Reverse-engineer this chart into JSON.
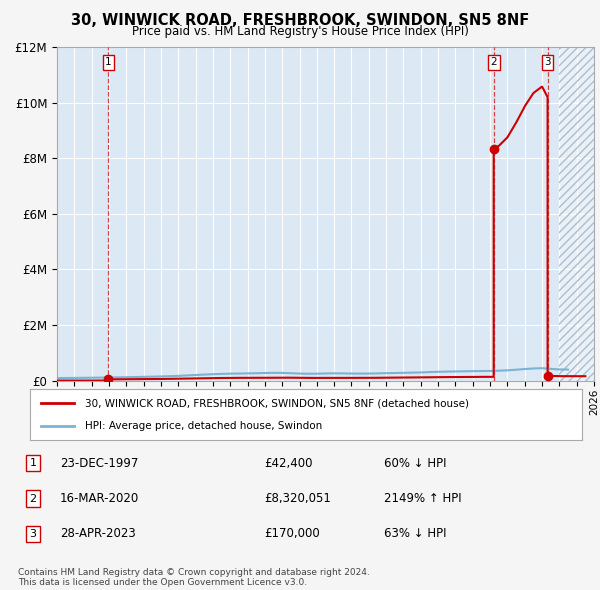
{
  "title": "30, WINWICK ROAD, FRESHBROOK, SWINDON, SN5 8NF",
  "subtitle": "Price paid vs. HM Land Registry's House Price Index (HPI)",
  "fig_bg_color": "#f5f5f5",
  "plot_bg_color": "#dce9f5",
  "hatch_color": "#b0bccb",
  "grid_color": "#ffffff",
  "ylim": [
    0,
    12000000
  ],
  "yticks": [
    0,
    2000000,
    4000000,
    6000000,
    8000000,
    10000000,
    12000000
  ],
  "ytick_labels": [
    "£0",
    "£2M",
    "£4M",
    "£6M",
    "£8M",
    "£10M",
    "£12M"
  ],
  "xmin": 1995,
  "xmax": 2026,
  "hpi_color": "#7ab3d4",
  "price_color": "#cc0000",
  "transactions": [
    {
      "num": 1,
      "date": "23-DEC-1997",
      "year": 1997.97,
      "price": 42400,
      "label": "23-DEC-1997",
      "price_str": "£42,400",
      "pct": "60% ↓ HPI"
    },
    {
      "num": 2,
      "date": "16-MAR-2020",
      "year": 2020.21,
      "price": 8320051,
      "label": "16-MAR-2020",
      "price_str": "£8,320,051",
      "pct": "2149% ↑ HPI"
    },
    {
      "num": 3,
      "date": "28-APR-2023",
      "year": 2023.32,
      "price": 170000,
      "label": "28-APR-2023",
      "price_str": "£170,000",
      "pct": "63% ↓ HPI"
    }
  ],
  "legend_property_label": "30, WINWICK ROAD, FRESHBROOK, SWINDON, SN5 8NF (detached house)",
  "legend_hpi_label": "HPI: Average price, detached house, Swindon",
  "footnote": "Contains HM Land Registry data © Crown copyright and database right 2024.\nThis data is licensed under the Open Government Licence v3.0.",
  "hpi_data": {
    "years": [
      1995.0,
      1995.5,
      1996.0,
      1996.5,
      1997.0,
      1997.5,
      1998.0,
      1998.5,
      1999.0,
      1999.5,
      2000.0,
      2000.5,
      2001.0,
      2001.5,
      2002.0,
      2002.5,
      2003.0,
      2003.5,
      2004.0,
      2004.5,
      2005.0,
      2005.5,
      2006.0,
      2006.5,
      2007.0,
      2007.5,
      2008.0,
      2008.5,
      2009.0,
      2009.5,
      2010.0,
      2010.5,
      2011.0,
      2011.5,
      2012.0,
      2012.5,
      2013.0,
      2013.5,
      2014.0,
      2014.5,
      2015.0,
      2015.5,
      2016.0,
      2016.5,
      2017.0,
      2017.5,
      2018.0,
      2018.5,
      2019.0,
      2019.5,
      2020.0,
      2020.5,
      2021.0,
      2021.5,
      2022.0,
      2022.5,
      2023.0,
      2023.5,
      2024.0,
      2024.5
    ],
    "values": [
      88000,
      92000,
      95000,
      98000,
      102000,
      106000,
      110000,
      115000,
      120000,
      126000,
      133000,
      140000,
      148000,
      158000,
      168000,
      185000,
      200000,
      215000,
      228000,
      240000,
      248000,
      252000,
      258000,
      264000,
      272000,
      278000,
      275000,
      265000,
      252000,
      245000,
      248000,
      255000,
      260000,
      258000,
      252000,
      250000,
      252000,
      258000,
      265000,
      272000,
      278000,
      285000,
      292000,
      305000,
      315000,
      322000,
      328000,
      333000,
      338000,
      342000,
      346000,
      355000,
      368000,
      390000,
      415000,
      435000,
      445000,
      420000,
      400000,
      395000
    ]
  }
}
